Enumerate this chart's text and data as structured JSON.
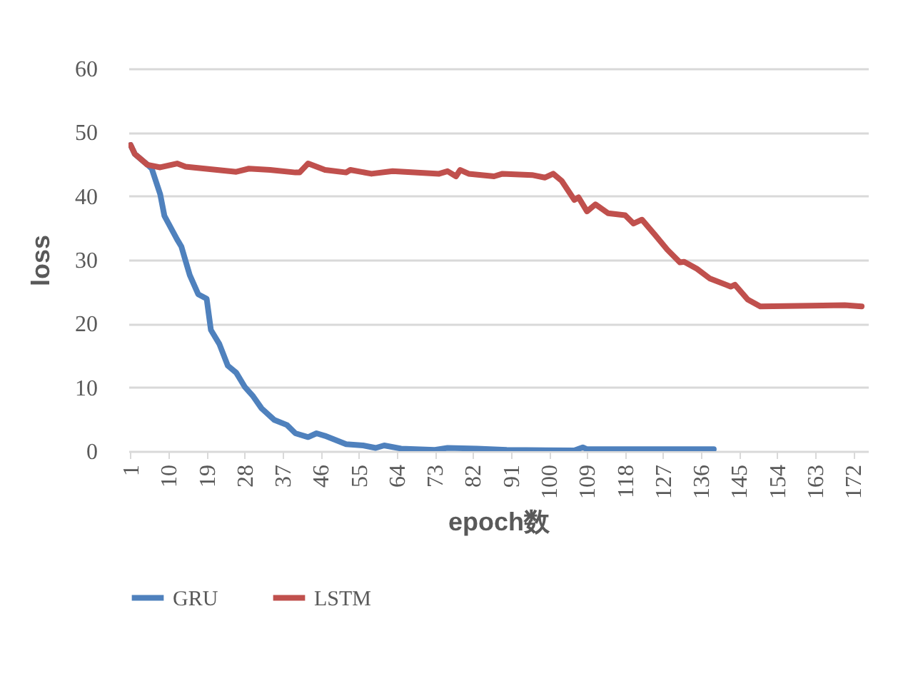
{
  "chart_data": {
    "type": "line",
    "xlabel": "epoch数",
    "ylabel": "loss",
    "xlim": [
      0.5,
      175.5
    ],
    "xticks": [
      1,
      10,
      19,
      28,
      37,
      46,
      55,
      64,
      73,
      82,
      91,
      100,
      109,
      118,
      127,
      136,
      145,
      154,
      163,
      172
    ],
    "ylim": [
      0,
      60
    ],
    "yticks": [
      0,
      10,
      20,
      30,
      40,
      50,
      60
    ],
    "grid": "y",
    "legend": "bottom",
    "marker": "none",
    "line_style": "solid",
    "series": [
      {
        "name": "GRU",
        "color": "#4f81bd",
        "x": [
          1,
          2,
          5,
          6,
          8,
          9,
          12,
          13,
          15,
          17,
          19,
          20,
          22,
          24,
          26,
          28,
          30,
          32,
          35,
          38,
          40,
          43,
          45,
          47,
          52,
          56,
          59,
          61,
          65,
          73,
          76,
          83,
          90,
          106,
          108,
          109,
          139
        ],
        "values": [
          48,
          46.6,
          44.9,
          44.3,
          40.3,
          36.9,
          33.2,
          32.1,
          27.6,
          24.6,
          23.9,
          19,
          16.8,
          13.4,
          12.3,
          10.1,
          8.6,
          6.7,
          4.9,
          4.1,
          2.8,
          2.2,
          2.8,
          2.4,
          1.1,
          0.9,
          0.5,
          0.9,
          0.4,
          0.2,
          0.5,
          0.4,
          0.2,
          0.1,
          0.6,
          0.3,
          0.3
        ]
      },
      {
        "name": "LSTM",
        "color": "#c0504d",
        "x": [
          1,
          2,
          5,
          8,
          12,
          14,
          26,
          29,
          34,
          40,
          41,
          43,
          47,
          52,
          53,
          58,
          63,
          74,
          76,
          78,
          79,
          81,
          87,
          89,
          96,
          99,
          101,
          103,
          106,
          107,
          109,
          111,
          114,
          118,
          120,
          122,
          125,
          128,
          131,
          132,
          135,
          138,
          143,
          144,
          147,
          150,
          162,
          170,
          174
        ],
        "values": [
          48,
          46.6,
          44.9,
          44.5,
          45.1,
          44.6,
          43.8,
          44.3,
          44.1,
          43.7,
          43.7,
          45.1,
          44.1,
          43.7,
          44.1,
          43.5,
          43.9,
          43.5,
          43.9,
          43.1,
          44.1,
          43.5,
          43.1,
          43.5,
          43.3,
          42.9,
          43.5,
          42.4,
          39.4,
          39.8,
          37.6,
          38.7,
          37.3,
          37,
          35.7,
          36.3,
          34,
          31.6,
          29.6,
          29.7,
          28.6,
          27.1,
          25.8,
          26.1,
          23.8,
          22.7,
          22.8,
          22.9,
          22.7
        ]
      }
    ]
  }
}
